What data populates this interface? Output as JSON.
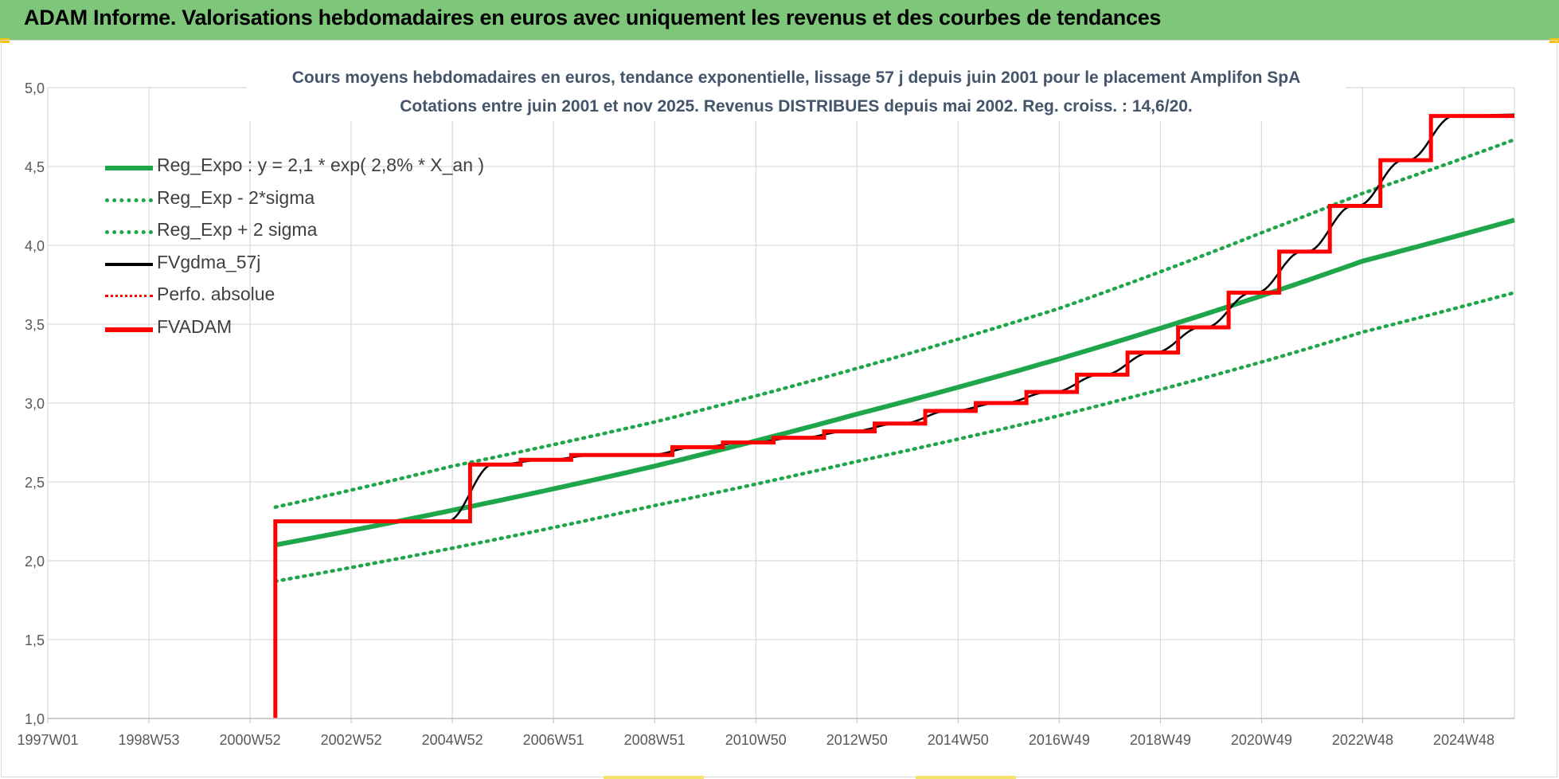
{
  "banner": {
    "title": "ADAM Informe. Valorisations hebdomadaires en euros avec uniquement les revenus et des courbes de tendances"
  },
  "colors": {
    "banner_bg": "#7dc67a",
    "regression": "#1fa64a",
    "fv_black": "#000000",
    "fv_red": "#ff0000",
    "grid": "#d9d9d9",
    "axis_text": "#595959",
    "title_text": "#44546a"
  },
  "chart_data": {
    "type": "line",
    "title": "Cours moyens hebdomadaires en euros, tendance exponentielle, lissage 57 j depuis juin 2001 pour le placement Amplifon SpA",
    "subtitle": "Cotations entre juin 2001 et nov 2025.  Revenus DISTRIBUES depuis mai 2002. Reg.  croiss. : 14,6/20.",
    "xlabel": "",
    "ylabel": "",
    "x_tick_labels": [
      "1997W01",
      "1998W53",
      "2000W52",
      "2002W52",
      "2004W52",
      "2006W51",
      "2008W51",
      "2010W50",
      "2012W50",
      "2014W50",
      "2016W49",
      "2018W49",
      "2020W49",
      "2022W48",
      "2024W48"
    ],
    "x_range": [
      1997.0,
      2026.0
    ],
    "ylim": [
      1.0,
      5.0
    ],
    "y_tick_labels": [
      "1,0",
      "1,5",
      "2,0",
      "2,5",
      "3,0",
      "3,5",
      "4,0",
      "4,5",
      "5,0"
    ],
    "grid": true,
    "legend_position": "top-left",
    "series": [
      {
        "name": "Reg_Expo : y = 2,1 * exp( 2,8% *  X_an )",
        "style": "solid-green",
        "x": [
          2001.5,
          2005.0,
          2009.0,
          2013.0,
          2017.0,
          2021.0,
          2023.0,
          2026.0
        ],
        "values": [
          2.1,
          2.32,
          2.6,
          2.93,
          3.28,
          3.68,
          3.9,
          4.16
        ]
      },
      {
        "name": "Reg_Exp - 2*sigma",
        "style": "dotted-green",
        "x": [
          2001.5,
          2005.0,
          2009.0,
          2013.0,
          2017.0,
          2021.0,
          2023.0,
          2026.0
        ],
        "values": [
          1.87,
          2.08,
          2.35,
          2.63,
          2.92,
          3.26,
          3.45,
          3.7
        ]
      },
      {
        "name": "Reg_Exp + 2 sigma",
        "style": "dotted-green",
        "x": [
          2001.5,
          2005.0,
          2009.0,
          2013.0,
          2017.0,
          2021.0,
          2023.0,
          2026.0
        ],
        "values": [
          2.34,
          2.6,
          2.88,
          3.22,
          3.6,
          4.08,
          4.33,
          4.67
        ]
      },
      {
        "name": "FVgdma_57j",
        "style": "solid-black-thin",
        "x": [
          2001.5,
          2005.3,
          2005.5,
          2006.5,
          2007.5,
          2009.3,
          2010.3,
          2011.3,
          2012.3,
          2013.3,
          2014.3,
          2015.3,
          2016.3,
          2017.3,
          2018.3,
          2019.3,
          2020.3,
          2021.3,
          2022.3,
          2023.3,
          2024.3,
          2025.3,
          2026.0
        ],
        "values": [
          2.25,
          2.31,
          2.61,
          2.64,
          2.67,
          2.72,
          2.75,
          2.78,
          2.82,
          2.87,
          2.95,
          3.0,
          3.07,
          3.18,
          3.32,
          3.48,
          3.7,
          3.96,
          4.25,
          4.54,
          4.82,
          4.83,
          4.83
        ]
      },
      {
        "name": "Perfo. absolue",
        "style": "dotted-red",
        "x": [],
        "values": []
      },
      {
        "name": "FVADAM",
        "style": "solid-red-thick",
        "steps_x": [
          2001.5,
          2005.35,
          2006.35,
          2007.35,
          2009.35,
          2010.35,
          2011.35,
          2012.35,
          2013.35,
          2014.35,
          2015.35,
          2016.35,
          2017.35,
          2018.35,
          2019.35,
          2020.35,
          2021.35,
          2022.35,
          2023.35,
          2024.35,
          2026.0
        ],
        "steps_y": [
          2.25,
          2.61,
          2.64,
          2.67,
          2.72,
          2.75,
          2.78,
          2.82,
          2.87,
          2.95,
          3.0,
          3.07,
          3.18,
          3.32,
          3.48,
          3.7,
          3.96,
          4.25,
          4.54,
          4.82,
          4.83
        ],
        "pre_start_value": 1.0
      }
    ]
  }
}
